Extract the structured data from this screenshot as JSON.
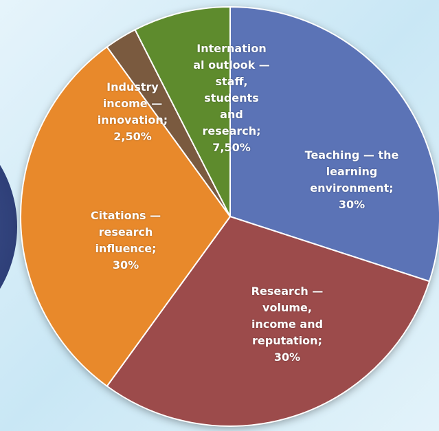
{
  "chart_data": {
    "type": "pie",
    "categories": [
      "Teaching — the learning environment;",
      "Research — volume, income and reputation;",
      "Citations — research influence;",
      "Industry income — innovation;",
      "International outlook — staff, students and research;"
    ],
    "values": [
      30,
      30,
      30,
      2.5,
      7.5
    ],
    "value_labels": [
      "30%",
      "30%",
      "30%",
      "2,50%",
      "7,50%"
    ],
    "colors": [
      "#5b73b6",
      "#9c4b4b",
      "#e8892b",
      "#7a5a3f",
      "#5e8b2d"
    ]
  }
}
